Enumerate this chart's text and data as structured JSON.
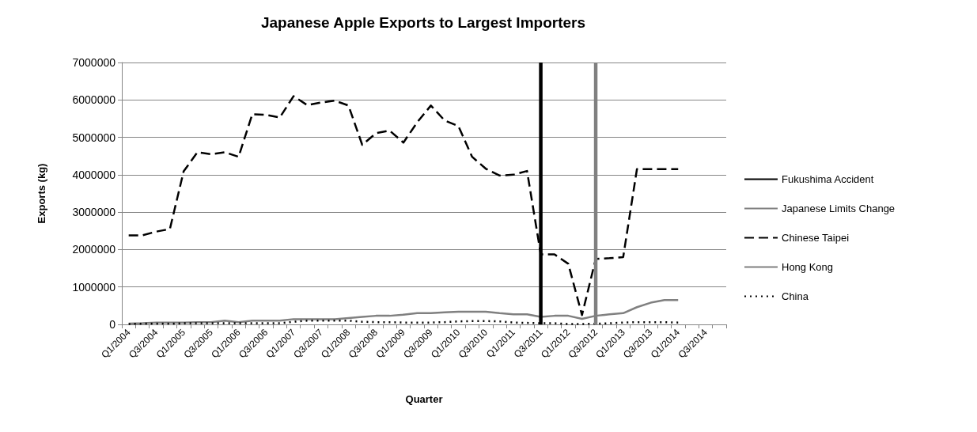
{
  "chart_data": {
    "type": "line",
    "title": "Japanese Apple Exports to Largest Importers",
    "xlabel": "Quarter",
    "ylabel": "Exports (kg)",
    "categories": [
      "Q1/2004",
      null,
      "Q3/2004",
      null,
      "Q1/2005",
      null,
      "Q3/2005",
      null,
      "Q1/2006",
      null,
      "Q3/2006",
      null,
      "Q1/2007",
      null,
      "Q3/2007",
      null,
      "Q1/2008",
      null,
      "Q3/2008",
      null,
      "Q1/2009",
      null,
      "Q3/2009",
      null,
      "Q1/2010",
      null,
      "Q3/2010",
      null,
      "Q1/2011",
      null,
      "Q3/2011",
      null,
      "Q1/2012",
      null,
      "Q3/2012",
      null,
      "Q1/2013",
      null,
      "Q3/2013",
      null,
      "Q1/2014",
      null,
      "Q3/2014",
      null
    ],
    "series": [
      {
        "name": "Fukushima Accident",
        "color": "#000000",
        "line_style": "solid",
        "x": [
          "Q3/2011",
          "Q3/2011"
        ],
        "values": [
          0,
          7000000
        ]
      },
      {
        "name": "Japanese Limits Change",
        "color": "#808080",
        "line_style": "solid",
        "x": [
          "Q3/2012",
          "Q3/2012"
        ],
        "values": [
          0,
          7000000
        ]
      },
      {
        "name": "Chinese Taipei",
        "color": "#000000",
        "line_style": "dashed",
        "values": [
          2380000,
          2380000,
          2480000,
          2550000,
          4090000,
          4600000,
          4550000,
          4600000,
          4480000,
          5620000,
          5600000,
          5530000,
          6100000,
          5860000,
          5930000,
          5980000,
          5850000,
          4800000,
          5110000,
          5180000,
          4860000,
          5400000,
          5850000,
          5450000,
          5300000,
          4480000,
          4160000,
          3980000,
          4000000,
          4100000,
          1870000,
          1870000,
          1620000,
          250000,
          1750000,
          1770000,
          1800000,
          4150000,
          4150000,
          4150000,
          4150000,
          null,
          null,
          null
        ]
      },
      {
        "name": "Hong Kong",
        "color": "#808080",
        "line_style": "solid",
        "values": [
          20000,
          30000,
          50000,
          50000,
          50000,
          60000,
          60000,
          100000,
          60000,
          100000,
          100000,
          100000,
          140000,
          140000,
          140000,
          140000,
          170000,
          200000,
          230000,
          230000,
          260000,
          300000,
          300000,
          320000,
          340000,
          340000,
          340000,
          300000,
          270000,
          270000,
          200000,
          230000,
          230000,
          150000,
          230000,
          270000,
          300000,
          460000,
          580000,
          650000,
          650000,
          null,
          null,
          null
        ]
      },
      {
        "name": "China",
        "color": "#000000",
        "line_style": "dotted",
        "values": [
          10000,
          20000,
          20000,
          20000,
          30000,
          30000,
          30000,
          30000,
          30000,
          30000,
          30000,
          30000,
          70000,
          100000,
          100000,
          100000,
          100000,
          70000,
          60000,
          60000,
          50000,
          50000,
          50000,
          60000,
          80000,
          90000,
          90000,
          80000,
          50000,
          40000,
          30000,
          30000,
          10000,
          10000,
          20000,
          30000,
          50000,
          60000,
          60000,
          60000,
          50000,
          null,
          null,
          null
        ]
      }
    ],
    "ylim": [
      0,
      7000000
    ],
    "yticks": [
      0,
      1000000,
      2000000,
      3000000,
      4000000,
      5000000,
      6000000,
      7000000
    ],
    "grid": "y",
    "legend": "right",
    "marker": "none"
  }
}
